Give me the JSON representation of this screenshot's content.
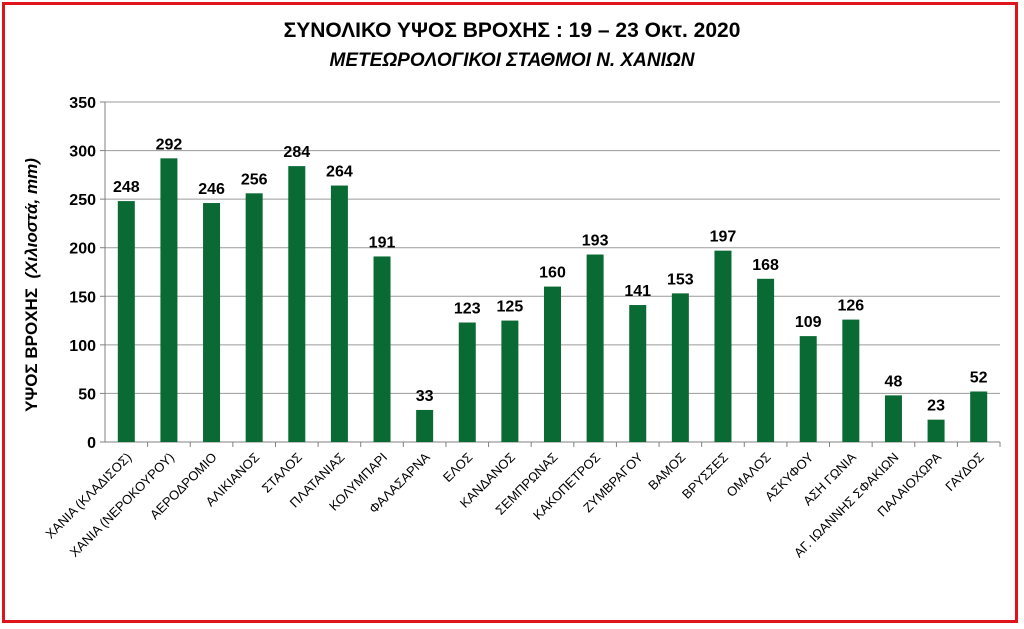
{
  "chart_data": {
    "type": "bar",
    "title": "ΣΥΝΟΛΙΚΟ ΥΨΟΣ ΒΡΟΧΗΣ  :  19 – 23 Οκτ. 2020",
    "subtitle": "ΜΕΤΕΩΡΟΛΟΓΙΚΟΙ ΣΤΑΘΜΟΙ  Ν. ΧΑΝΙΩΝ",
    "ylabel_main": "ΥΨΟΣ ΒΡΟΧΗΣ",
    "ylabel_unit": "(Χιλιοστά, mm)",
    "ylim": [
      0,
      350
    ],
    "yticks": [
      0,
      50,
      100,
      150,
      200,
      250,
      300,
      350
    ],
    "grid": true,
    "bar_color": "#0a6a34",
    "border_color": "#e0141b",
    "categories": [
      "ΧΑΝΙΑ (ΚΛΑΔΙΣΟΣ)",
      "ΧΑΝΙΑ (ΝΕΡΟΚΟΥΡΟΥ)",
      "ΑΕΡΟΔΡΟΜΙΟ",
      "ΑΛΙΚΙΑΝΟΣ",
      "ΣΤΑΛΟΣ",
      "ΠΛΑΤΑΝΙΑΣ",
      "ΚΟΛΥΜΠΑΡΙ",
      "ΦΑΛΑΣΑΡΝΑ",
      "ΕΛΟΣ",
      "ΚΑΝΔΑΝΟΣ",
      "ΣΕΜΠΡΩΝΑΣ",
      "ΚΑΚΟΠΕΤΡΟΣ",
      "ΖΥΜΒΡΑΓΟΥ",
      "ΒΑΜΟΣ",
      "ΒΡΥΣΣΕΣ",
      "ΟΜΑΛΟΣ",
      "ΑΣΚΥΦΟΥ",
      "ΑΣΗ ΓΩΝΙΑ",
      "ΑΓ. ΙΩΑΝΝΗΣ ΣΦΑΚΙΩΝ",
      "ΠΑΛΑΙΟΧΩΡΑ",
      "ΓΑΥΔΟΣ"
    ],
    "values": [
      248,
      292,
      246,
      256,
      284,
      264,
      191,
      33,
      123,
      125,
      160,
      193,
      141,
      153,
      197,
      168,
      109,
      126,
      48,
      23,
      52
    ]
  }
}
